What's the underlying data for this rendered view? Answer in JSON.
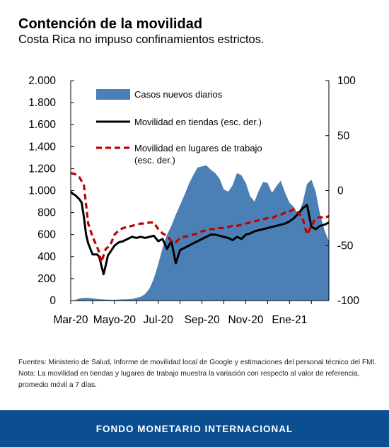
{
  "header": {
    "title": "Contención de la movilidad",
    "subtitle": "Costa Rica no impuso confinamientos estrictos."
  },
  "colors": {
    "cases": "#4a80b5",
    "retail": "#000000",
    "workplace": "#c00000",
    "footer_bg": "#0c4f91"
  },
  "chart_data": {
    "type": "area",
    "left_axis": {
      "ylim": [
        0,
        2000
      ],
      "ticks": [
        0,
        200,
        400,
        600,
        800,
        1000,
        1200,
        1400,
        1600,
        1800,
        2000
      ],
      "tick_labels": [
        "0",
        "200",
        "400",
        "600",
        "800",
        "1.000",
        "1.200",
        "1.400",
        "1.600",
        "1.800",
        "2.000"
      ]
    },
    "right_axis": {
      "ylim": [
        -100,
        100
      ],
      "ticks": [
        -100,
        -50,
        0,
        50,
        100
      ],
      "tick_labels": [
        "-100",
        "-50",
        "0",
        "50",
        "100"
      ]
    },
    "x_ticks": [
      {
        "label": "Mar-20",
        "month": 0
      },
      {
        "label": "Mayo-20",
        "month": 2
      },
      {
        "label": "Jul-20",
        "month": 4
      },
      {
        "label": "Sep-20",
        "month": 6
      },
      {
        "label": "Nov-20",
        "month": 8
      },
      {
        "label": "Ene-21",
        "month": 10
      }
    ],
    "x_range_months": [
      0,
      11.8
    ],
    "series": [
      {
        "name": "Casos nuevos diarios",
        "axis": "left",
        "kind": "area",
        "x": [
          0,
          0.2,
          0.4,
          0.6,
          0.8,
          1.0,
          1.2,
          1.5,
          1.8,
          2.0,
          2.3,
          2.6,
          2.8,
          3.0,
          3.2,
          3.4,
          3.6,
          3.8,
          4.0,
          4.2,
          4.4,
          4.6,
          4.8,
          5.0,
          5.2,
          5.4,
          5.6,
          5.8,
          6.0,
          6.2,
          6.4,
          6.6,
          6.8,
          7.0,
          7.2,
          7.4,
          7.6,
          7.8,
          8.0,
          8.2,
          8.4,
          8.6,
          8.8,
          9.0,
          9.2,
          9.4,
          9.6,
          9.8,
          10.0,
          10.2,
          10.4,
          10.6,
          10.8,
          11.0,
          11.2,
          11.4,
          11.6,
          11.8
        ],
        "values": [
          0,
          5,
          20,
          25,
          25,
          20,
          15,
          10,
          8,
          8,
          10,
          12,
          15,
          25,
          35,
          60,
          110,
          200,
          330,
          480,
          600,
          680,
          780,
          870,
          960,
          1060,
          1140,
          1210,
          1220,
          1230,
          1190,
          1160,
          1110,
          1010,
          990,
          1050,
          1160,
          1140,
          1070,
          950,
          900,
          1000,
          1080,
          1070,
          980,
          1040,
          1090,
          980,
          890,
          850,
          780,
          890,
          1060,
          1100,
          990,
          780,
          640,
          540
        ]
      },
      {
        "name": "Movilidad en tiendas (esc. der.)",
        "axis": "right",
        "kind": "line",
        "x": [
          0,
          0.1,
          0.2,
          0.3,
          0.4,
          0.5,
          0.6,
          0.7,
          0.8,
          1.0,
          1.2,
          1.3,
          1.4,
          1.5,
          1.6,
          1.7,
          1.8,
          2.0,
          2.2,
          2.4,
          2.6,
          2.8,
          3.0,
          3.2,
          3.4,
          3.6,
          3.8,
          4.0,
          4.2,
          4.4,
          4.6,
          4.8,
          5.0,
          5.2,
          5.4,
          5.6,
          5.8,
          6.0,
          6.2,
          6.4,
          6.6,
          6.8,
          7.0,
          7.2,
          7.4,
          7.6,
          7.8,
          8.0,
          8.2,
          8.4,
          8.6,
          8.8,
          9.0,
          9.2,
          9.4,
          9.6,
          9.8,
          10.0,
          10.2,
          10.4,
          10.6,
          10.8,
          11.0,
          11.2,
          11.4,
          11.6,
          11.8
        ],
        "values": [
          -1,
          -3,
          -4,
          -6,
          -8,
          -11,
          -24,
          -40,
          -48,
          -58,
          -58,
          -60,
          -68,
          -76,
          -68,
          -59,
          -56,
          -50,
          -47,
          -46,
          -44,
          -42,
          -43,
          -42,
          -43,
          -42,
          -41,
          -46,
          -44,
          -53,
          -46,
          -66,
          -54,
          -52,
          -50,
          -48,
          -46,
          -44,
          -42,
          -40,
          -40,
          -41,
          -42,
          -43,
          -45,
          -42,
          -44,
          -40,
          -39,
          -37,
          -36,
          -35,
          -34,
          -33,
          -32,
          -31,
          -30,
          -28,
          -25,
          -21,
          -16,
          -13,
          -33,
          -35,
          -32,
          -31,
          -29
        ]
      },
      {
        "name": "Movilidad en lugares de trabajo (esc. der.)",
        "axis": "right",
        "kind": "dashed-line",
        "x": [
          0,
          0.2,
          0.4,
          0.6,
          0.8,
          1.0,
          1.2,
          1.3,
          1.4,
          1.6,
          1.8,
          2.0,
          2.2,
          2.4,
          2.6,
          2.8,
          3.0,
          3.2,
          3.4,
          3.6,
          3.8,
          4.0,
          4.2,
          4.4,
          4.6,
          4.8,
          5.0,
          5.2,
          5.4,
          5.6,
          5.8,
          6.0,
          6.2,
          6.4,
          6.6,
          6.8,
          7.0,
          7.2,
          7.4,
          7.6,
          7.8,
          8.0,
          8.2,
          8.4,
          8.6,
          8.8,
          9.0,
          9.2,
          9.4,
          9.6,
          9.8,
          10.0,
          10.2,
          10.4,
          10.6,
          10.8,
          11.0,
          11.2,
          11.4,
          11.6,
          11.8
        ],
        "values": [
          16,
          15,
          12,
          5,
          -30,
          -42,
          -51,
          -56,
          -65,
          -53,
          -50,
          -40,
          -36,
          -34,
          -33,
          -32,
          -31,
          -30,
          -30,
          -29,
          -29,
          -35,
          -39,
          -41,
          -46,
          -47,
          -43,
          -42,
          -41,
          -40,
          -39,
          -37,
          -36,
          -35,
          -35,
          -34,
          -34,
          -33,
          -32,
          -32,
          -31,
          -30,
          -29,
          -28,
          -27,
          -26,
          -25,
          -25,
          -23,
          -22,
          -20,
          -19,
          -17,
          -20,
          -25,
          -40,
          -32,
          -25,
          -24,
          -25,
          -23
        ]
      }
    ],
    "legend": {
      "placement": "top-left",
      "items": [
        {
          "line1": "Casos nuevos diarios",
          "line2": ""
        },
        {
          "line1": "Movilidad en tiendas (esc. der.)",
          "line2": ""
        },
        {
          "line1": "Movilidad en lugares de trabajo",
          "line2": "(esc. der.)"
        }
      ]
    },
    "grid": false
  },
  "notes": {
    "sources": "Fuentes: Ministerio de Salud, Informe de movilidad local de Google y estimaciones del personal técnico del FMI.",
    "note_line1": "Nota: La movilidad en tiendas y lugares de trabajo muestra la variación con respecto al valor de referencia,",
    "note_line2": "promedio móvil a 7 días."
  },
  "footer": {
    "label": "FONDO MONETARIO INTERNACIONAL"
  }
}
